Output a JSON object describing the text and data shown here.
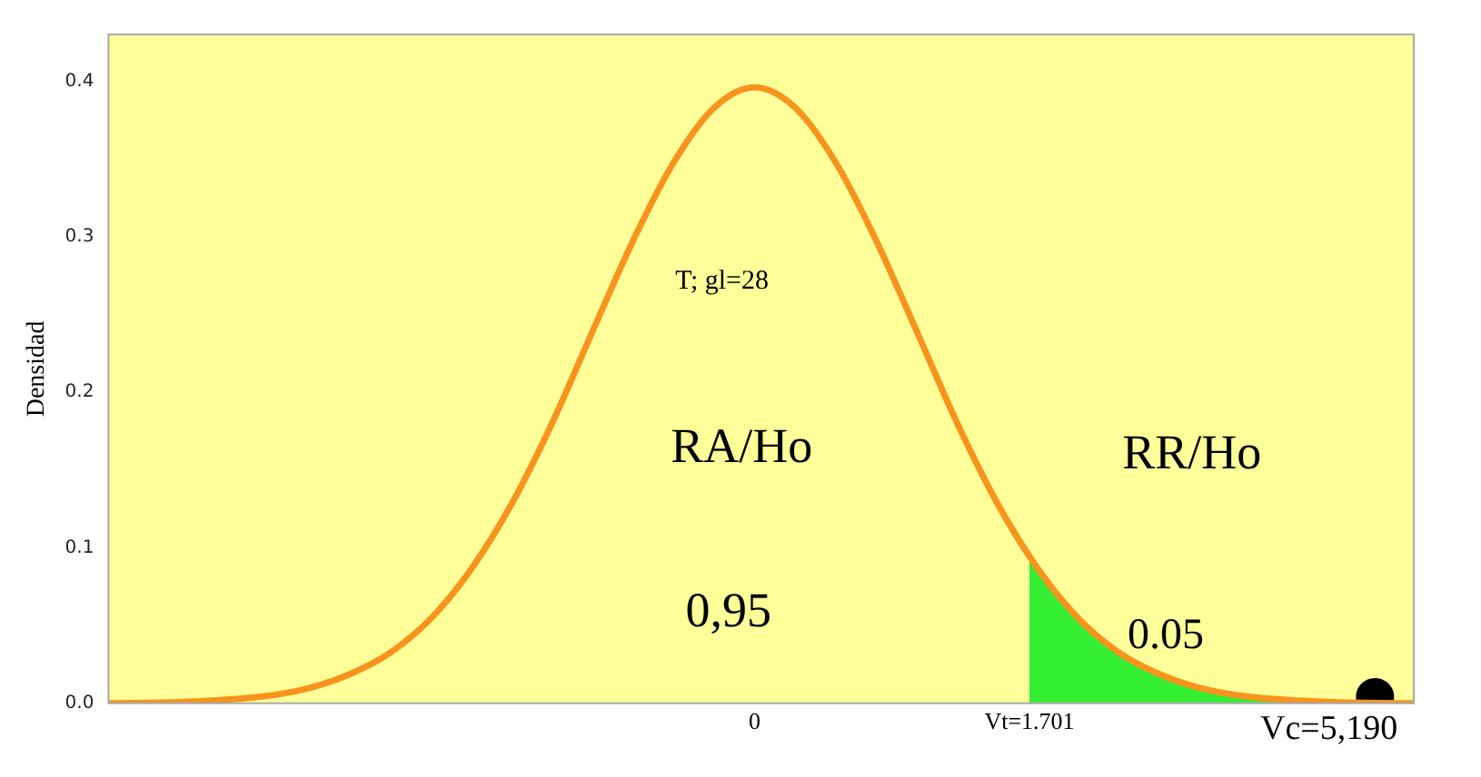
{
  "chart_data": {
    "type": "line",
    "ylabel": "Densidad",
    "xlim": [
      -4,
      4.08
    ],
    "ylim": [
      0,
      0.43
    ],
    "xticks": [
      0,
      {
        "value": 1.701,
        "label": "Vt=1.701"
      }
    ],
    "yticks": [
      {
        "value": 0,
        "label": "0.0"
      },
      0.1,
      0.2,
      0.3,
      0.4
    ],
    "grid": false,
    "legend": false,
    "marker": "none",
    "line_style": "solid",
    "series": [
      {
        "color": "#f7941d",
        "x": [
          -4,
          -3.5,
          -3,
          -2.75,
          -2.5,
          -2.25,
          -2,
          -1.75,
          -1.5,
          -1.25,
          -1,
          -0.75,
          -0.5,
          -0.25,
          0,
          0.25,
          0.5,
          0.75,
          1,
          1.25,
          1.5,
          1.75,
          2,
          2.25,
          2.5,
          2.75,
          3,
          3.5,
          4.08
        ],
        "values": [
          0,
          0.001,
          0.005,
          0.01,
          0.019,
          0.033,
          0.055,
          0.087,
          0.129,
          0.181,
          0.24,
          0.298,
          0.348,
          0.383,
          0.396,
          0.383,
          0.348,
          0.298,
          0.24,
          0.181,
          0.129,
          0.087,
          0.055,
          0.033,
          0.019,
          0.01,
          0.005,
          0.001,
          0
        ]
      },
      {
        "type": "area",
        "color": "#33ee33",
        "x": [
          1.701,
          1.75,
          2,
          2.25,
          2.5,
          2.75,
          3,
          3.5,
          4.08
        ],
        "values": [
          0.094,
          0.087,
          0.055,
          0.033,
          0.019,
          0.01,
          0.005,
          0.001,
          0
        ]
      },
      {
        "type": "scatter",
        "marker": "circle",
        "color": "#000000",
        "x": [
          3.84
        ],
        "values": [
          0.004
        ]
      }
    ],
    "annotations": [
      "T; gl=28",
      "RA/Ho",
      "RR/Ho",
      "0,95",
      "0.05",
      "Vc=5,190"
    ]
  }
}
